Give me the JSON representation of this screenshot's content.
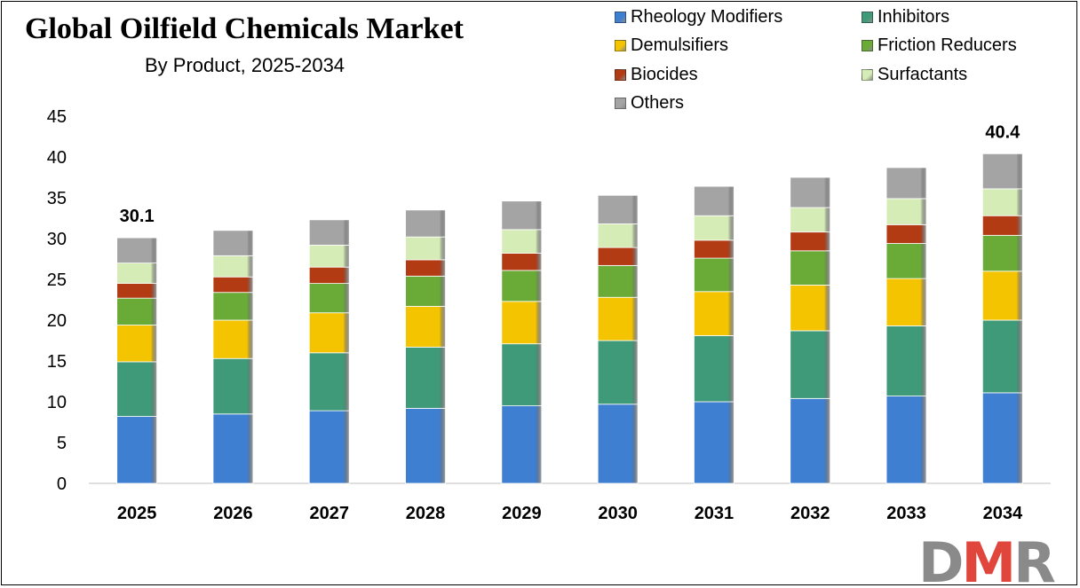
{
  "title": "Global Oilfield Chemicals Market",
  "subtitle": "By Product, 2025-2034",
  "logo_text": "DMR",
  "colors": {
    "rheology_modifiers": "#3f7fd1",
    "inhibitors": "#3f9a79",
    "demulsifiers": "#f5c400",
    "friction_reducers": "#6aaa37",
    "biocides": "#b23b14",
    "surfactants": "#d5ecb7",
    "others": "#a4a4a4",
    "logo_gray": "#8a8a8a",
    "logo_red": "#e0463c"
  },
  "chart_data": {
    "type": "bar",
    "stacked": true,
    "categories": [
      "2025",
      "2026",
      "2027",
      "2028",
      "2029",
      "2030",
      "2031",
      "2032",
      "2033",
      "2034"
    ],
    "series": [
      {
        "name": "Rheology Modifiers",
        "values": [
          8.2,
          8.5,
          8.9,
          9.2,
          9.5,
          9.7,
          10.0,
          10.4,
          10.7,
          11.1
        ]
      },
      {
        "name": "Inhibitors",
        "values": [
          6.7,
          6.8,
          7.1,
          7.5,
          7.6,
          7.8,
          8.1,
          8.3,
          8.6,
          8.9
        ]
      },
      {
        "name": "Demulsifiers",
        "values": [
          4.5,
          4.7,
          4.9,
          5.0,
          5.2,
          5.3,
          5.4,
          5.6,
          5.8,
          6.0
        ]
      },
      {
        "name": "Friction Reducers",
        "values": [
          3.3,
          3.4,
          3.6,
          3.7,
          3.8,
          3.9,
          4.1,
          4.2,
          4.3,
          4.4
        ]
      },
      {
        "name": "Biocides",
        "values": [
          1.8,
          1.9,
          2.0,
          2.0,
          2.1,
          2.2,
          2.2,
          2.3,
          2.3,
          2.4
        ]
      },
      {
        "name": "Surfactants",
        "values": [
          2.5,
          2.6,
          2.7,
          2.8,
          2.9,
          2.9,
          3.0,
          3.0,
          3.2,
          3.3
        ]
      },
      {
        "name": "Others",
        "values": [
          3.1,
          3.1,
          3.1,
          3.3,
          3.5,
          3.5,
          3.6,
          3.7,
          3.8,
          4.3
        ]
      }
    ],
    "totals_labels": [
      {
        "category": "2025",
        "text": "30.1"
      },
      {
        "category": "2034",
        "text": "40.4"
      }
    ],
    "ylim": [
      0,
      45
    ],
    "yticks": [
      0,
      5,
      10,
      15,
      20,
      25,
      30,
      35,
      40,
      45
    ],
    "xlabel": "",
    "ylabel": "",
    "grid": false,
    "legend_position": "top-right"
  }
}
